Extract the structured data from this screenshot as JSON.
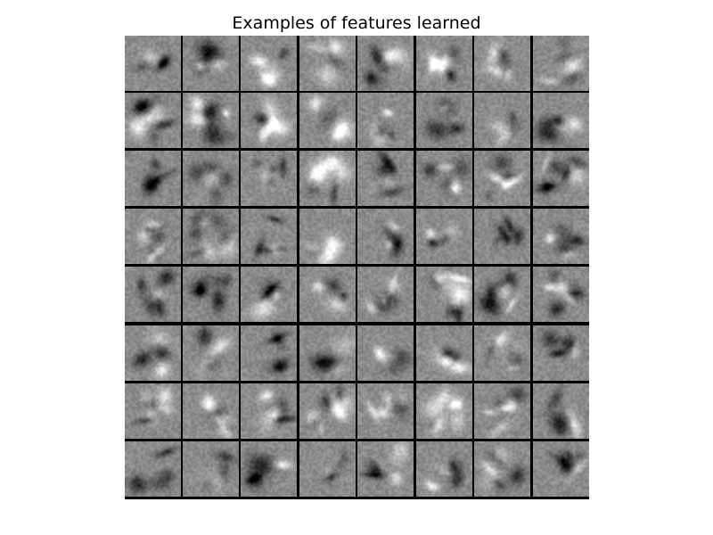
{
  "figure": {
    "title": "Examples of features learned",
    "grid_rows": 8,
    "grid_cols": 8,
    "tile_count": 64,
    "colors": {
      "background": "#ffffff",
      "separator": "#000000",
      "tile_base_gray": "#8c8c8c"
    }
  }
}
